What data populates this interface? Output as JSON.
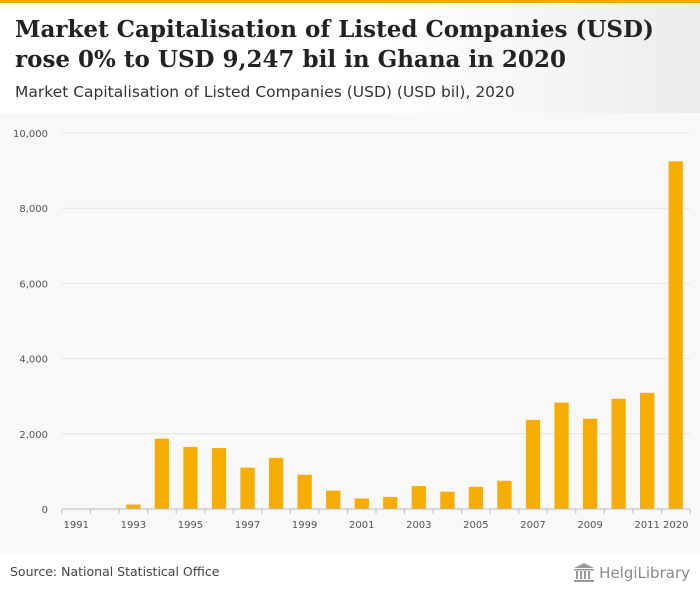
{
  "header": {
    "title": "Market Capitalisation of Listed Companies (USD) rose 0% to USD 9,247 bil in Ghana in 2020",
    "subtitle": "Market Capitalisation of Listed Companies (USD) (USD bil), 2020"
  },
  "footer": {
    "source": "Source: National Statistical Office",
    "logo_text": "HelgiLibrary"
  },
  "colors": {
    "accent": "#f5a800",
    "bar": "#f7ac00",
    "grid": "#e3e3e3",
    "axis_text": "#555555"
  },
  "chart_data": {
    "type": "bar",
    "categories": [
      "1991",
      "1992",
      "1993",
      "1994",
      "1995",
      "1996",
      "1997",
      "1998",
      "1999",
      "2000",
      "2001",
      "2002",
      "2003",
      "2004",
      "2005",
      "2006",
      "2007",
      "2008",
      "2009",
      "2010",
      "2011",
      "2020"
    ],
    "series": [
      {
        "values": [
          0,
          0,
          118,
          1870,
          1650,
          1620,
          1100,
          1360,
          910,
          490,
          280,
          320,
          610,
          460,
          590,
          750,
          2370,
          2830,
          2400,
          2930,
          3090,
          9247
        ]
      }
    ],
    "x_tick_labels": [
      "1991",
      "1993",
      "1995",
      "1997",
      "1999",
      "2001",
      "2003",
      "2005",
      "2007",
      "2009",
      "2011",
      "2020"
    ],
    "y_ticks": [
      0,
      2000,
      4000,
      6000,
      8000,
      10000
    ],
    "y_tick_labels": [
      "0",
      "2,000",
      "4,000",
      "6,000",
      "8,000",
      "10,000"
    ],
    "ylim": [
      0,
      10000
    ],
    "grid": true,
    "legend": false
  }
}
